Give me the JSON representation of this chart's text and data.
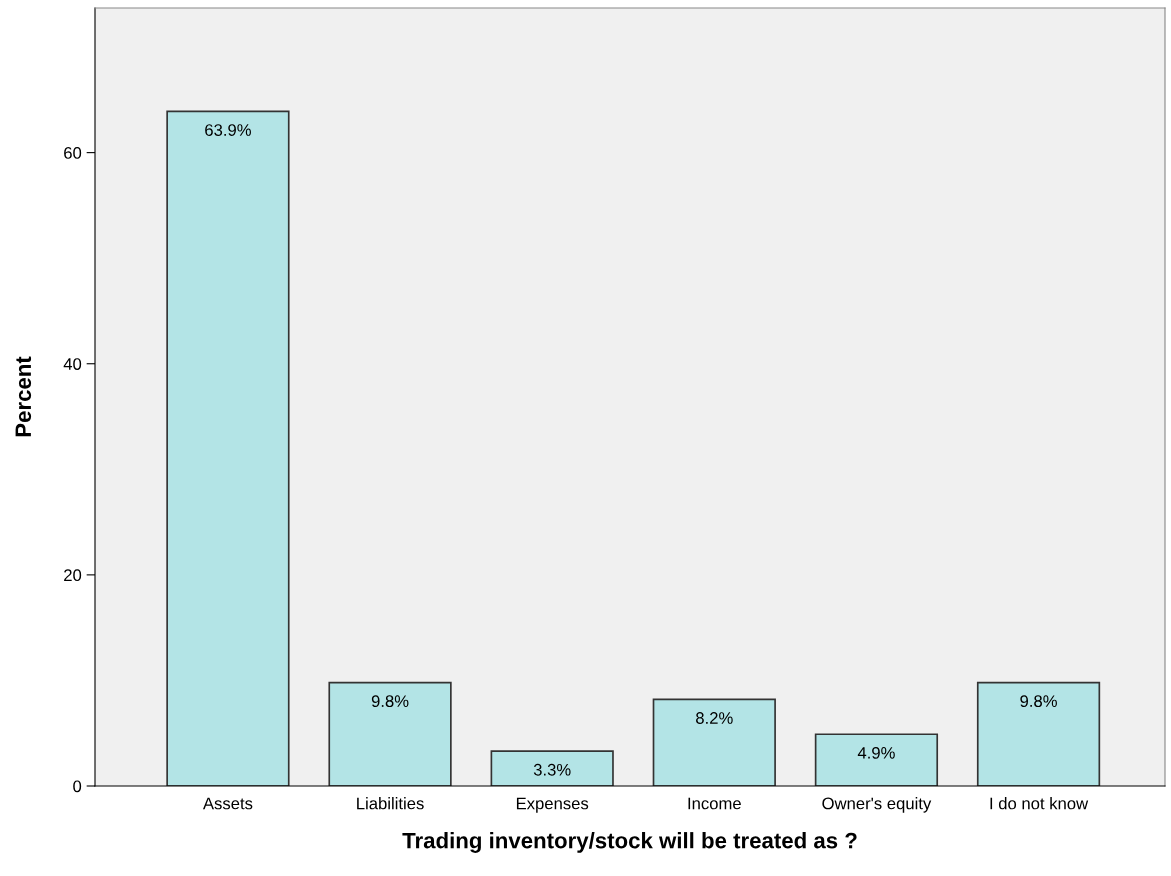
{
  "chart_data": {
    "type": "bar",
    "xlabel": "Trading inventory/stock will be treated as ?",
    "ylabel": "Percent",
    "categories": [
      "Assets",
      "Liabilities",
      "Expenses",
      "Income",
      "Owner's equity",
      "I do not know"
    ],
    "values": [
      63.9,
      9.8,
      3.3,
      8.2,
      4.9,
      9.8
    ],
    "value_labels": [
      "63.9%",
      "9.8%",
      "3.3%",
      "8.2%",
      "4.9%",
      "9.8%"
    ],
    "color": "#b3e4e6",
    "ylim": [
      0,
      73.7
    ],
    "yticks": [
      0,
      20,
      40,
      60
    ],
    "grid": false,
    "legend": false
  }
}
